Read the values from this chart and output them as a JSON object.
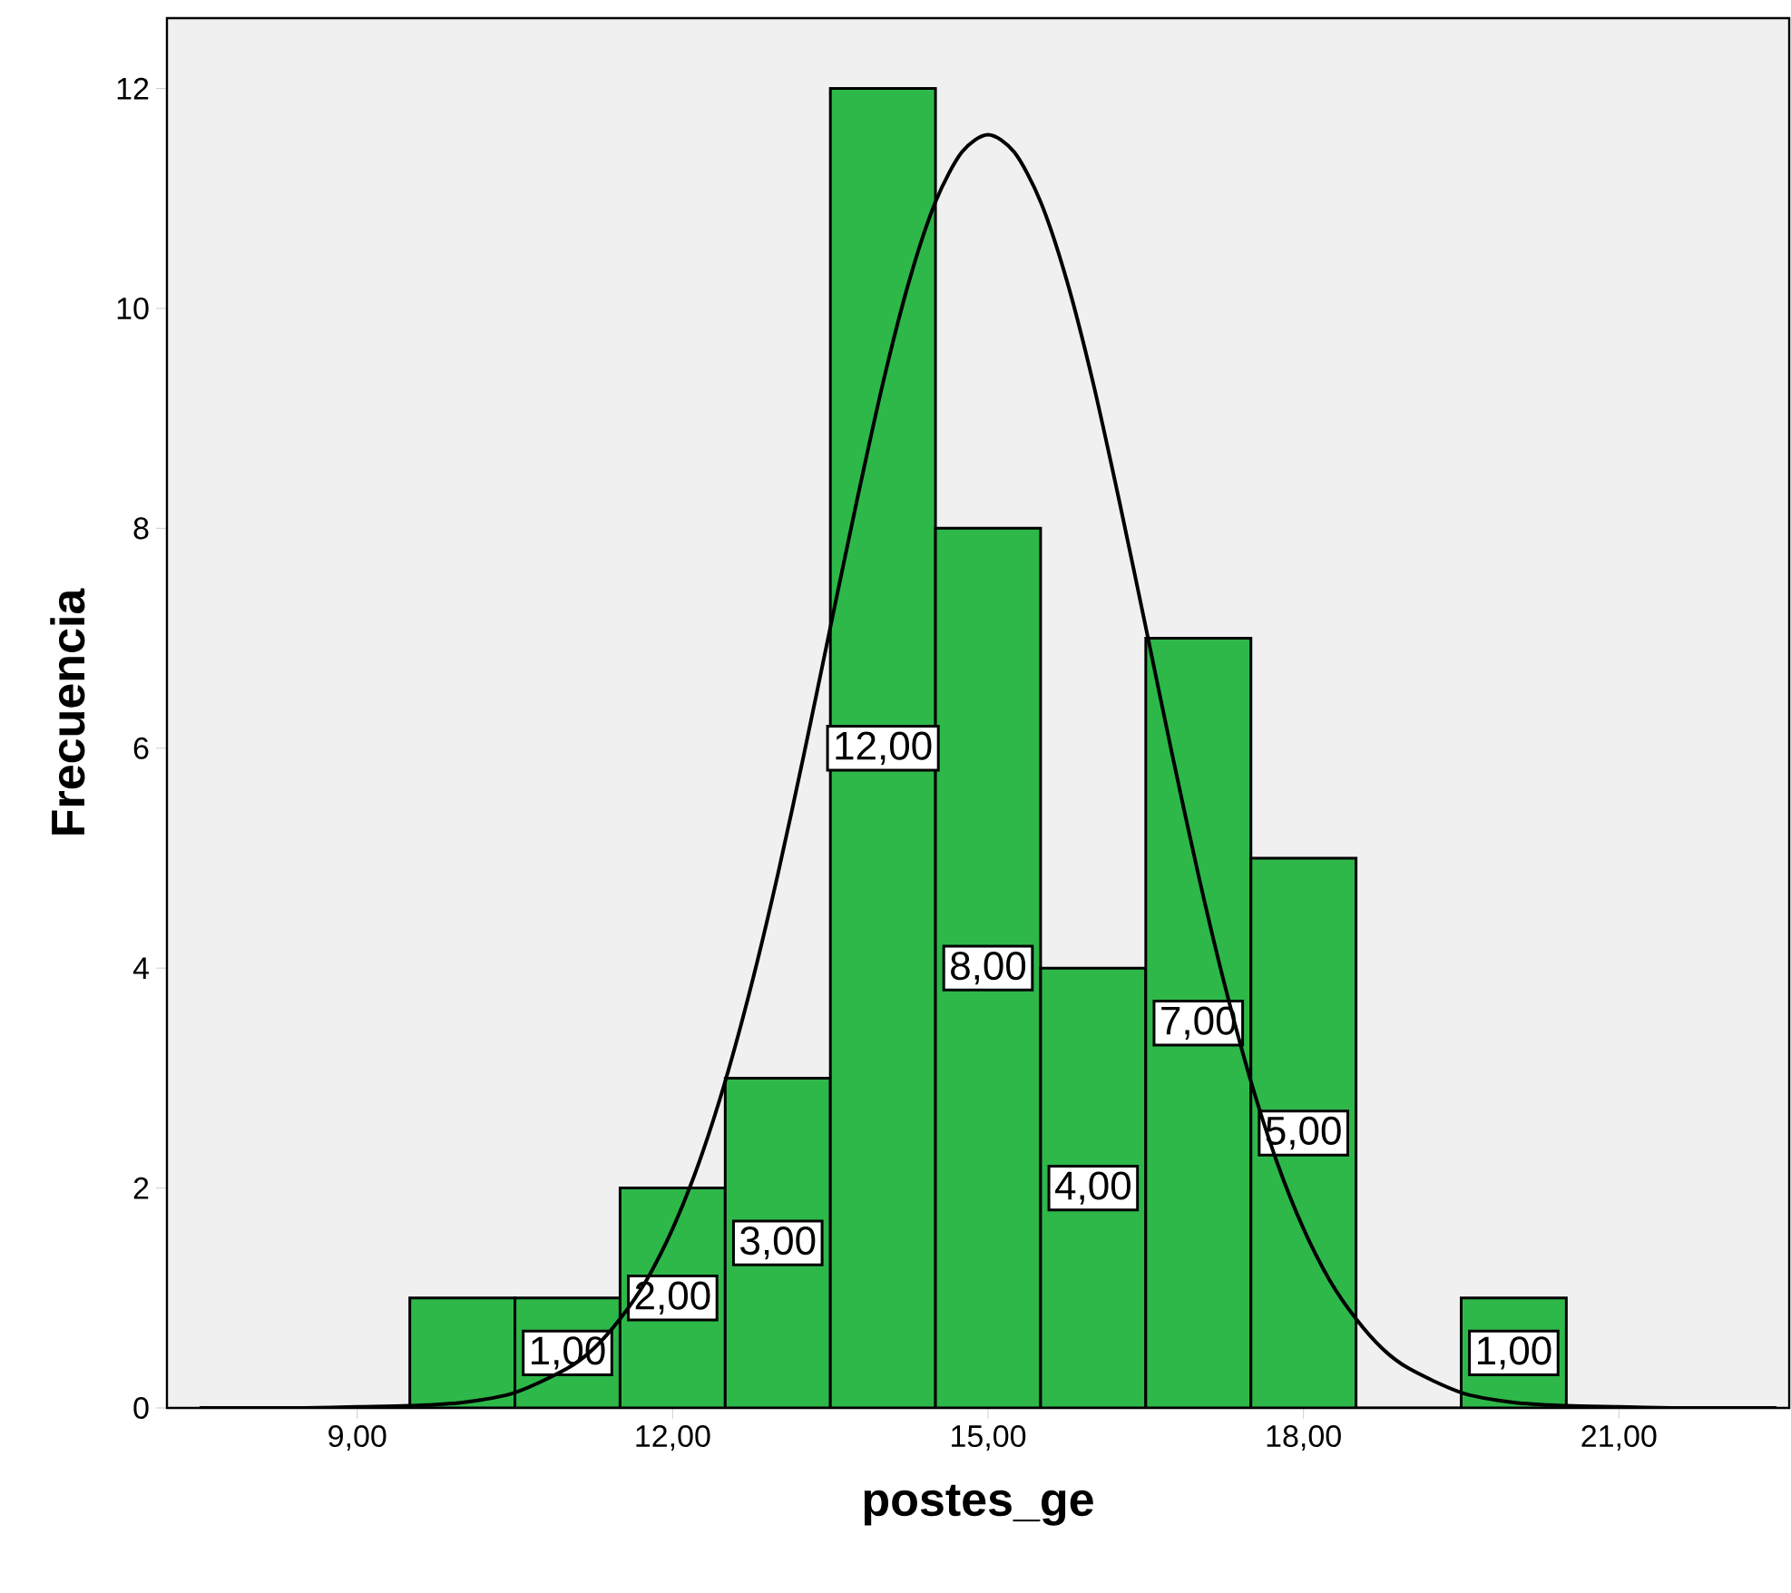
{
  "chart_data": {
    "type": "histogram",
    "xlabel": "postes_ge",
    "ylabel": "Frecuencia",
    "bins": [
      9.5,
      10.5,
      11.5,
      12.5,
      13.5,
      14.5,
      15.5,
      16.5,
      17.5,
      18.5,
      19.5,
      20.5
    ],
    "values": [
      1,
      1,
      2,
      3,
      12,
      8,
      4,
      7,
      5,
      0,
      1
    ],
    "value_labels": [
      null,
      "1,00",
      "2,00",
      "3,00",
      "12,00",
      "8,00",
      "4,00",
      "7,00",
      "5,00",
      null,
      "1,00"
    ],
    "color": "#2eb84a",
    "series": [
      {
        "type": "line",
        "color": "#000000",
        "x": [
          7.5,
          8,
          8.5,
          9,
          9.5,
          10,
          10.5,
          11,
          11.25,
          11.5,
          11.75,
          12,
          12.25,
          12.5,
          12.75,
          13,
          13.25,
          13.5,
          13.75,
          14,
          14.25,
          14.5,
          14.75,
          15,
          15.25,
          15.5,
          15.75,
          16,
          16.25,
          16.5,
          16.75,
          17,
          17.25,
          17.5,
          17.75,
          18,
          18.25,
          18.5,
          18.75,
          19,
          19.5,
          20,
          20.5,
          21,
          21.5,
          22,
          22.5
        ],
        "values": [
          0,
          0,
          0,
          0.01,
          0.02,
          0.05,
          0.14,
          0.36,
          0.54,
          0.81,
          1.16,
          1.63,
          2.23,
          2.97,
          3.85,
          4.85,
          5.95,
          7.1,
          8.24,
          9.32,
          10.25,
          10.97,
          11.42,
          11.58,
          11.42,
          10.97,
          10.25,
          9.32,
          8.24,
          7.1,
          5.95,
          4.85,
          3.85,
          2.97,
          2.23,
          1.63,
          1.16,
          0.81,
          0.54,
          0.36,
          0.14,
          0.05,
          0.02,
          0.01,
          0,
          0,
          0
        ]
      }
    ],
    "xlim": [
      7.19,
      22.62
    ],
    "ylim": [
      0,
      12.64
    ],
    "xticks": [
      {
        "value": 9,
        "label": "9,00"
      },
      {
        "value": 12,
        "label": "12,00"
      },
      {
        "value": 15,
        "label": "15,00"
      },
      {
        "value": 18,
        "label": "18,00"
      },
      {
        "value": 21,
        "label": "21,00"
      }
    ],
    "yticks": [
      0,
      2,
      4,
      6,
      8,
      10,
      12
    ],
    "grid": false
  }
}
